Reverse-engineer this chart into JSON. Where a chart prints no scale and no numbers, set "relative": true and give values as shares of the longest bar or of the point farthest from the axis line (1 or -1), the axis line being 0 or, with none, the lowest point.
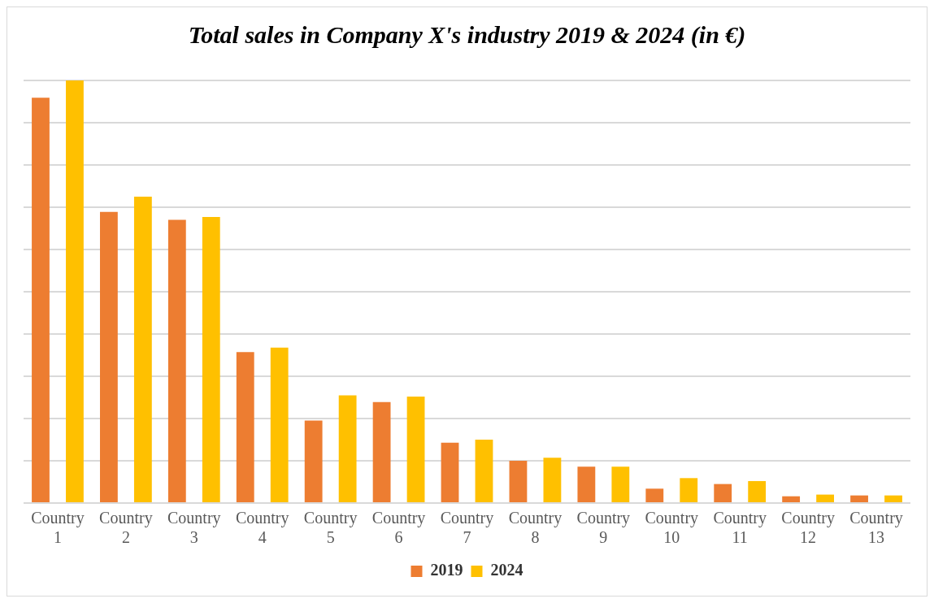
{
  "chart_data": {
    "type": "bar",
    "title": "Total sales in Company X's industry 2019 & 2024 (in €)",
    "relative": true,
    "grid": "y",
    "legend": "bottom",
    "categories": [
      "Country 1",
      "Country 2",
      "Country 3",
      "Country 4",
      "Country 5",
      "Country 6",
      "Country 7",
      "Country 8",
      "Country 9",
      "Country 10",
      "Country 11",
      "Country 12",
      "Country 13"
    ],
    "series": [
      {
        "name": "2019",
        "color": "#ed7d31",
        "values": [
          0.959,
          0.689,
          0.67,
          0.357,
          0.195,
          0.239,
          0.143,
          0.1,
          0.086,
          0.034,
          0.045,
          0.016,
          0.018
        ]
      },
      {
        "name": "2024",
        "color": "#ffc000",
        "values": [
          1,
          0.725,
          0.677,
          0.368,
          0.255,
          0.252,
          0.15,
          0.107,
          0.086,
          0.059,
          0.052,
          0.02,
          0.018
        ]
      }
    ]
  }
}
